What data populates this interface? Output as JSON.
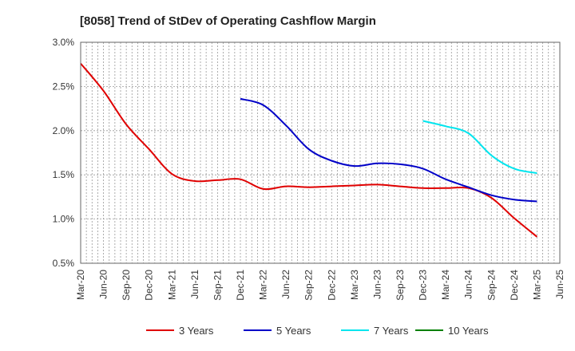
{
  "chart_data": {
    "type": "line",
    "title": "[8058]  Trend of StDev of Operating Cashflow Margin",
    "xlabel": "",
    "ylabel": "",
    "x": [
      "Mar-20",
      "Jun-20",
      "Sep-20",
      "Dec-20",
      "Mar-21",
      "Jun-21",
      "Sep-21",
      "Dec-21",
      "Mar-22",
      "Jun-22",
      "Sep-22",
      "Dec-22",
      "Mar-23",
      "Jun-23",
      "Sep-23",
      "Dec-23",
      "Mar-24",
      "Jun-24",
      "Sep-24",
      "Dec-24",
      "Mar-25",
      "Jun-25"
    ],
    "ylim": [
      0.5,
      3.0
    ],
    "yticks": [
      0.5,
      1.0,
      1.5,
      2.0,
      2.5,
      3.0
    ],
    "ytick_labels": [
      "0.5%",
      "1.0%",
      "1.5%",
      "2.0%",
      "2.5%",
      "3.0%"
    ],
    "x_minor_per_interval": 3,
    "grid": true,
    "legend_position": "bottom",
    "series": [
      {
        "name": "3 Years",
        "color": "#e00000",
        "values": [
          2.76,
          2.45,
          2.07,
          1.79,
          1.51,
          1.43,
          1.44,
          1.45,
          1.34,
          1.37,
          1.36,
          1.37,
          1.38,
          1.39,
          1.37,
          1.35,
          1.35,
          1.35,
          1.24,
          1.01,
          0.8,
          null
        ]
      },
      {
        "name": "5 Years",
        "color": "#0000c8",
        "values": [
          null,
          null,
          null,
          null,
          null,
          null,
          null,
          2.36,
          2.29,
          2.06,
          1.79,
          1.66,
          1.6,
          1.63,
          1.62,
          1.57,
          1.45,
          1.36,
          1.27,
          1.22,
          1.2,
          null
        ]
      },
      {
        "name": "7 Years",
        "color": "#00e5ee",
        "values": [
          null,
          null,
          null,
          null,
          null,
          null,
          null,
          null,
          null,
          null,
          null,
          null,
          null,
          null,
          null,
          2.11,
          2.05,
          1.97,
          1.72,
          1.57,
          1.52,
          null
        ]
      },
      {
        "name": "10 Years",
        "color": "#008000",
        "values": [
          null,
          null,
          null,
          null,
          null,
          null,
          null,
          null,
          null,
          null,
          null,
          null,
          null,
          null,
          null,
          null,
          null,
          null,
          null,
          null,
          null,
          null
        ]
      }
    ]
  }
}
